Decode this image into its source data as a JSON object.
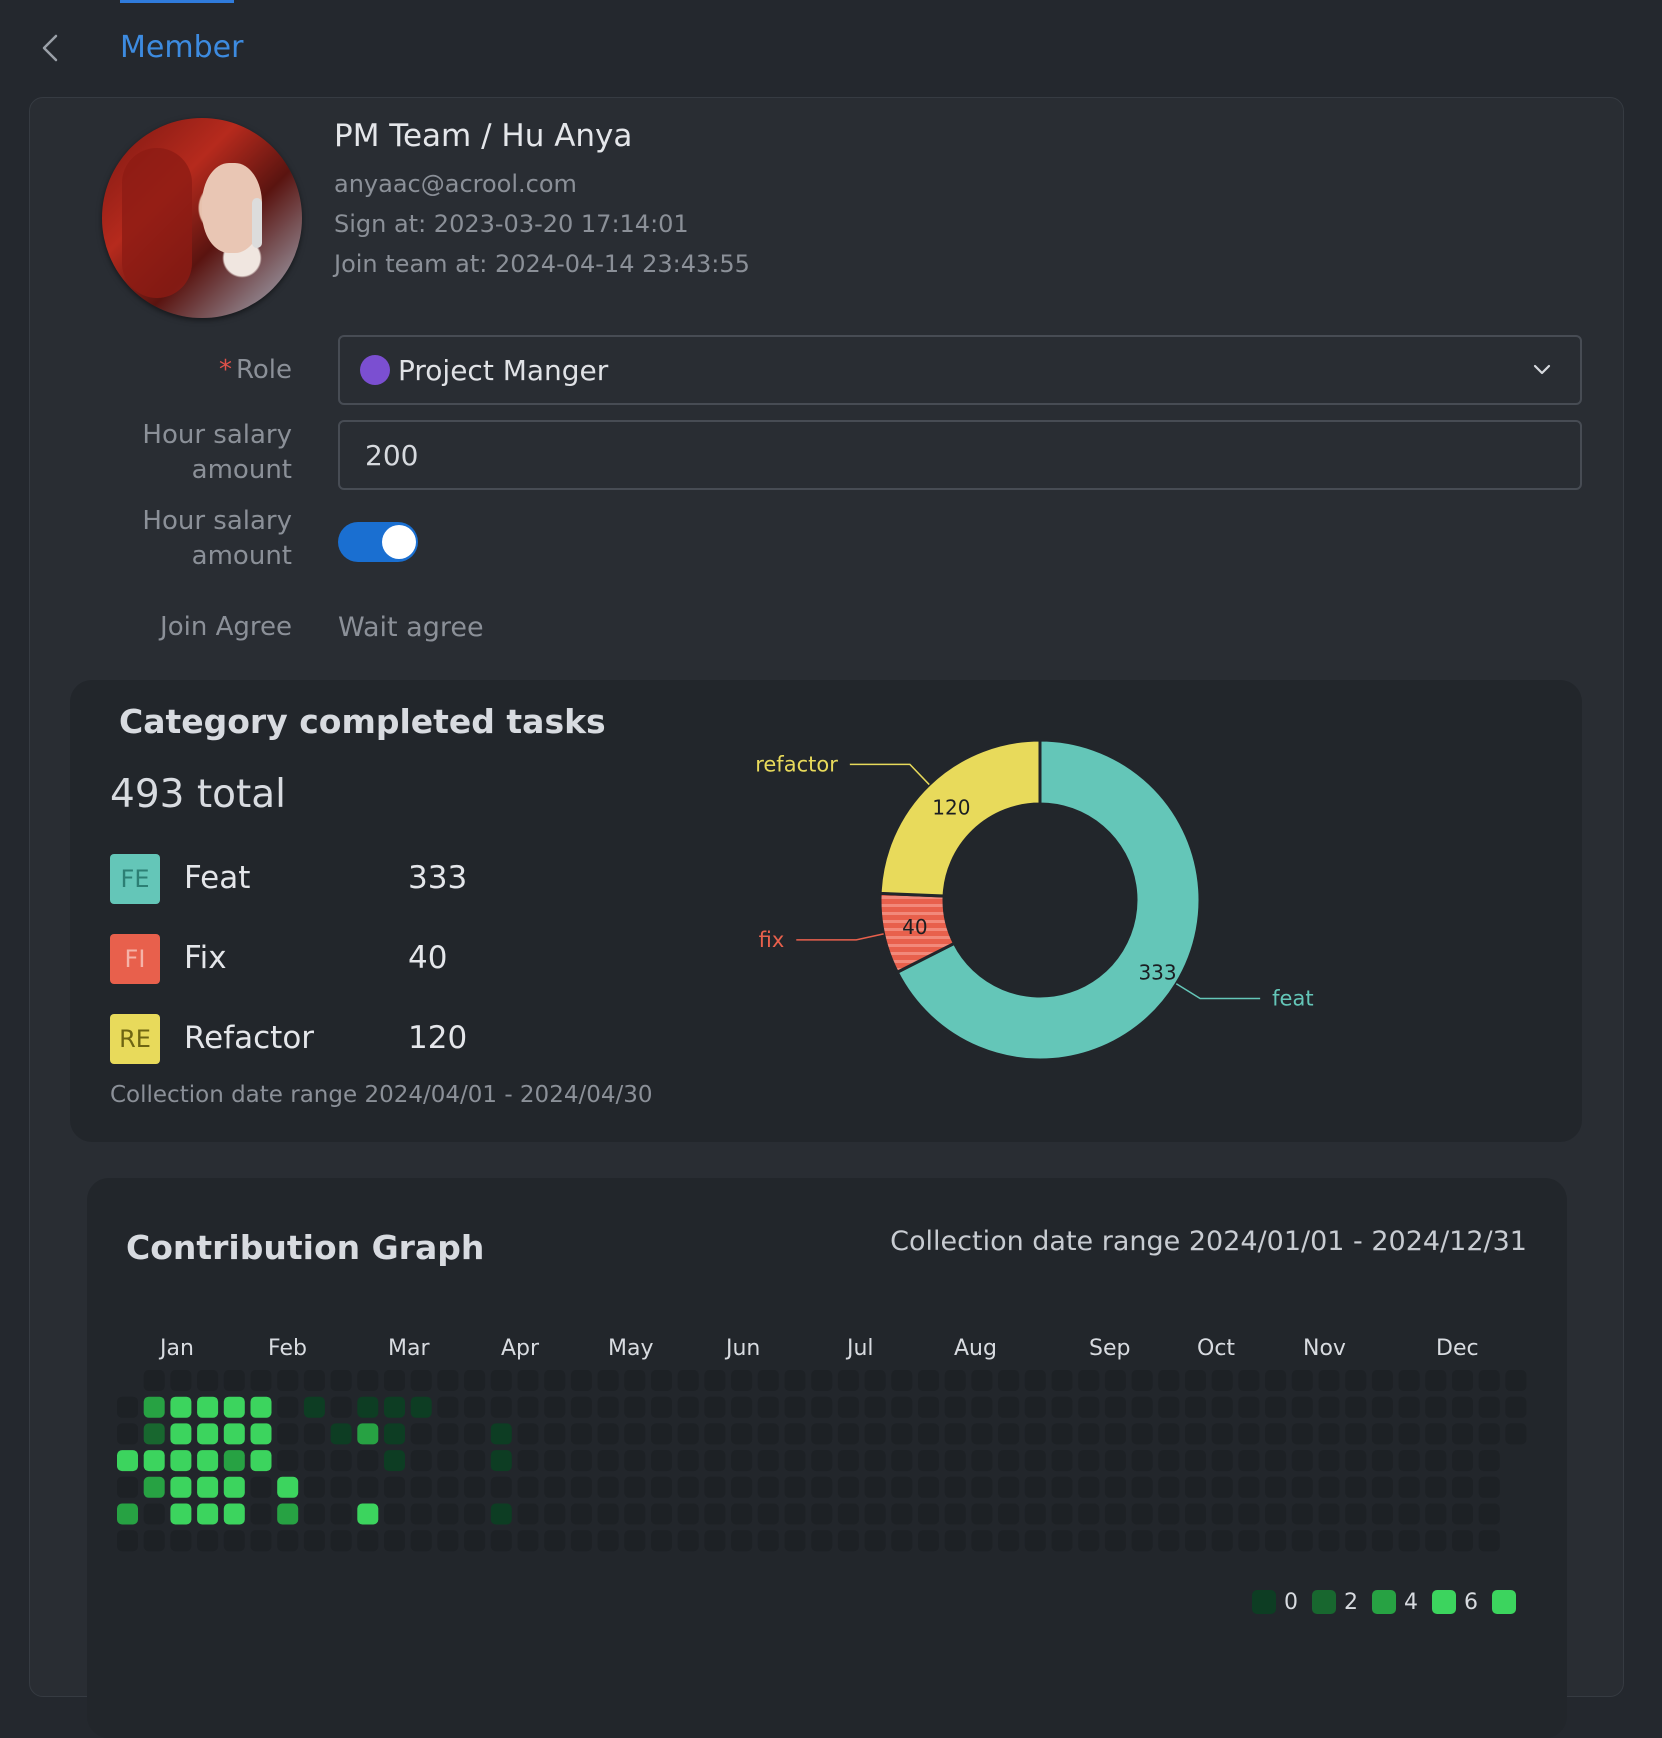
{
  "header": {
    "title": "Member"
  },
  "profile": {
    "name": "PM Team / Hu Anya",
    "email": "anyaac@acrool.com",
    "sign_at": "Sign at: 2023-03-20 17:14:01",
    "join_team_at": "Join team at: 2024-04-14 23:43:55"
  },
  "form": {
    "role_label": "Role",
    "role_required": "*",
    "role_value": "Project Manger",
    "role_color": "#7b4fd1",
    "salary_label_line1": "Hour salary",
    "salary_label_line2": "amount",
    "salary_value": "200",
    "toggle_label_line1": "Hour salary",
    "toggle_label_line2": "amount",
    "toggle_on": true,
    "join_label": "Join Agree",
    "join_value": "Wait agree"
  },
  "category_card": {
    "title": "Category completed tasks",
    "total": "493 total",
    "items": [
      {
        "badge": "FE",
        "name": "Feat",
        "value": "333",
        "color": "#64c6b8"
      },
      {
        "badge": "FI",
        "name": "Fix",
        "value": "40",
        "color": "#e8604c"
      },
      {
        "badge": "RE",
        "name": "Refactor",
        "value": "120",
        "color": "#e8da5b"
      }
    ],
    "range": "Collection date range 2024/04/01 - 2024/04/30"
  },
  "chart_data": {
    "type": "pie",
    "variant": "donut",
    "slices": [
      {
        "label": "feat",
        "value": 333,
        "color": "#64c6b8"
      },
      {
        "label": "fix",
        "value": 40,
        "color": "#e8604c"
      },
      {
        "label": "refactor",
        "value": 120,
        "color": "#e8da5b"
      }
    ]
  },
  "contribution": {
    "title": "Contribution Graph",
    "range": "Collection date range 2024/01/01 - 2024/12/31",
    "months": [
      "Jan",
      "Feb",
      "Mar",
      "Apr",
      "May",
      "Jun",
      "Jul",
      "Aug",
      "Sep",
      "Oct",
      "Nov",
      "Dec"
    ],
    "legend": [
      "0",
      "2",
      "4",
      "6"
    ],
    "level_colors": [
      "#1d2125",
      "#0d3d23",
      "#18672f",
      "#27a243",
      "#3cd45e"
    ],
    "weeks": [
      [
        0,
        0,
        0,
        4,
        0,
        3,
        0
      ],
      [
        0,
        3,
        2,
        4,
        3,
        0,
        0
      ],
      [
        0,
        4,
        4,
        4,
        4,
        4,
        0
      ],
      [
        0,
        4,
        4,
        4,
        4,
        4,
        0
      ],
      [
        0,
        4,
        4,
        3,
        4,
        4,
        0
      ],
      [
        0,
        4,
        4,
        4,
        0,
        0,
        0
      ],
      [
        0,
        0,
        0,
        0,
        4,
        3,
        0
      ],
      [
        0,
        1,
        0,
        0,
        0,
        0,
        0
      ],
      [
        0,
        0,
        1,
        0,
        0,
        0,
        0
      ],
      [
        0,
        1,
        3,
        0,
        0,
        4,
        0
      ],
      [
        0,
        1,
        1,
        1,
        0,
        0,
        0
      ],
      [
        0,
        1,
        0,
        0,
        0,
        0,
        0
      ],
      [
        0,
        0,
        0,
        0,
        0,
        0,
        0
      ],
      [
        0,
        0,
        0,
        0,
        0,
        0,
        0
      ],
      [
        0,
        0,
        1,
        1,
        0,
        1,
        0
      ]
    ],
    "total_weeks": 53
  }
}
